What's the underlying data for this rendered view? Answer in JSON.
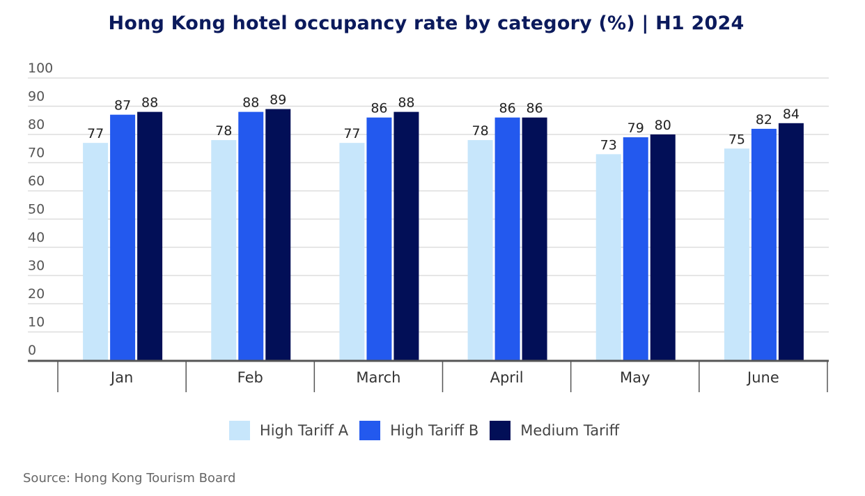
{
  "chart_data": {
    "type": "bar",
    "title": "Hong Kong hotel occupancy rate by category (%) | H1 2024",
    "categories": [
      "Jan",
      "Feb",
      "March",
      "April",
      "May",
      "June"
    ],
    "series": [
      {
        "name": "High Tariff A",
        "color": "#c7e6fb",
        "values": [
          77,
          78,
          77,
          78,
          73,
          75
        ]
      },
      {
        "name": "High Tariff B",
        "color": "#2359ee",
        "values": [
          87,
          88,
          86,
          86,
          79,
          82
        ]
      },
      {
        "name": "Medium Tariff",
        "color": "#020f57",
        "values": [
          88,
          89,
          88,
          86,
          80,
          84
        ]
      }
    ],
    "yticks": [
      "0",
      "10",
      "20",
      "30",
      "40",
      "50",
      "60",
      "70",
      "80",
      "90",
      "100"
    ],
    "ylim": [
      0,
      100
    ],
    "grid": true,
    "legend_position": "bottom"
  },
  "source": "Source: Hong Kong Tourism Board"
}
